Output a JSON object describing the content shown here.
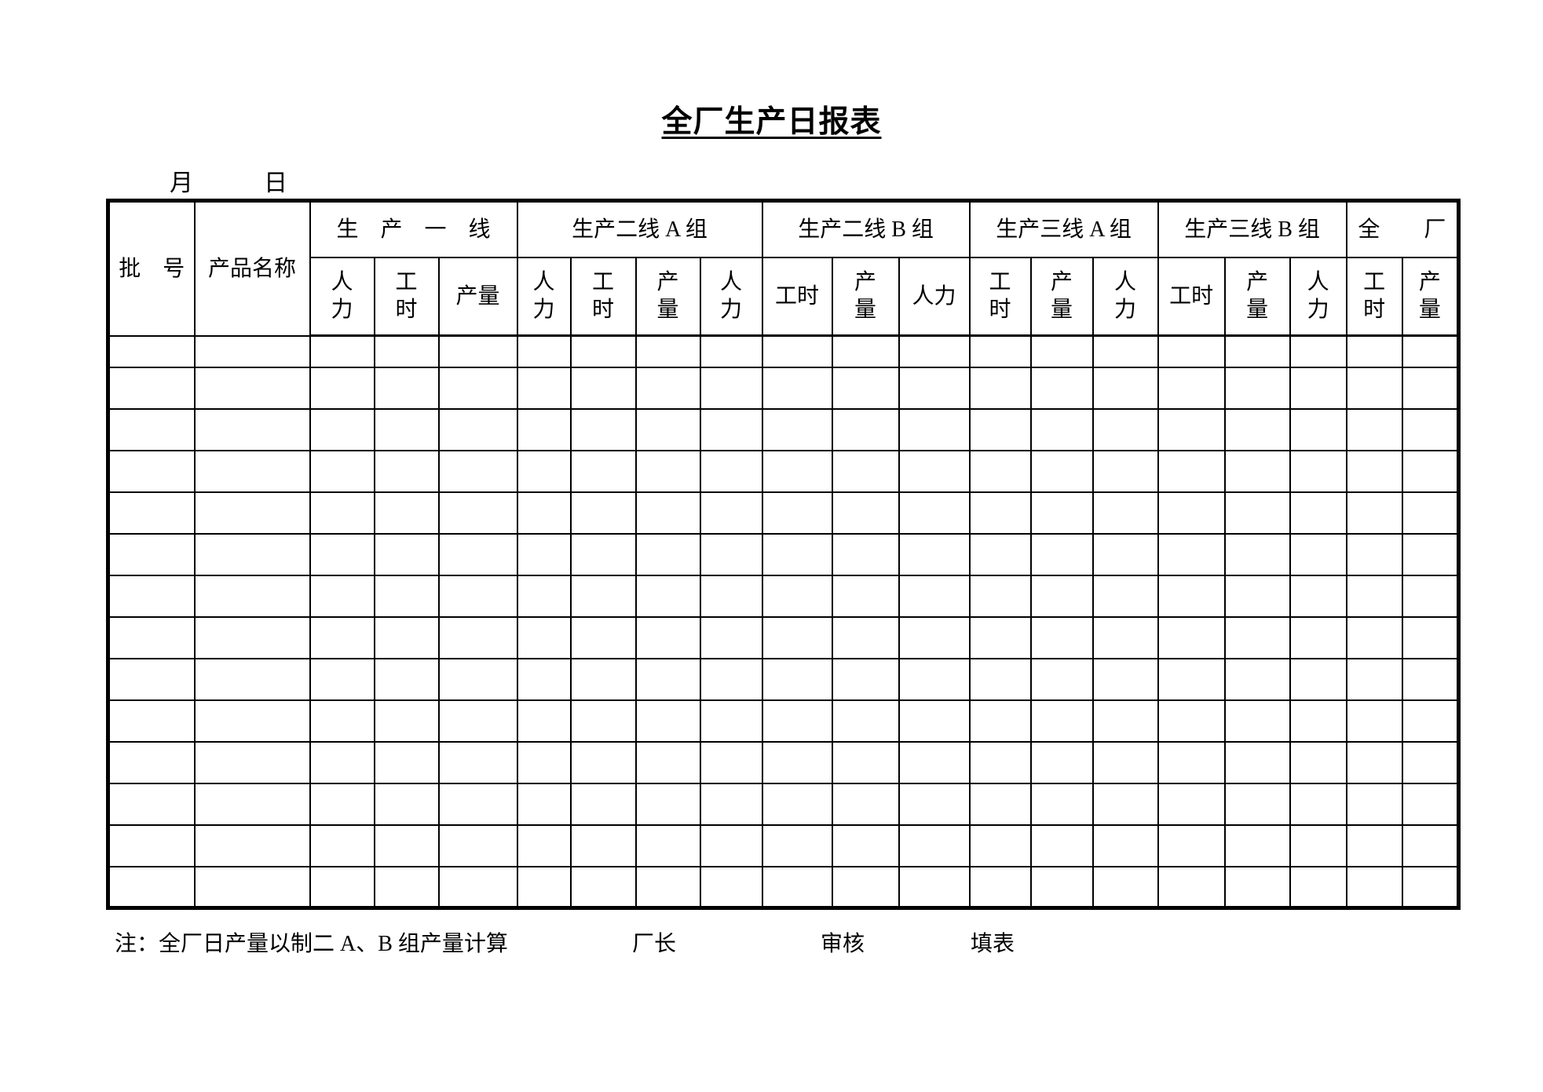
{
  "page": {
    "title": "全厂生产日报表",
    "month_label": "月",
    "day_label": "日"
  },
  "table": {
    "batch_label": "批　号",
    "product_label": "产品名称",
    "groups": [
      {
        "label": "生　产　一　线",
        "cols": [
          "人\n力",
          "工\n时",
          "产量"
        ]
      },
      {
        "label": "生产二线 A 组",
        "cols": [
          "人\n力",
          "工\n时",
          "产\n量",
          "人\n力"
        ]
      },
      {
        "label": "生产二线 B 组",
        "cols": [
          "工时",
          "产\n量",
          "人力"
        ]
      },
      {
        "label": "生产三线 A 组",
        "cols": [
          "工\n时",
          "产\n量",
          "人\n力"
        ]
      },
      {
        "label": "生产三线 B 组",
        "cols": [
          "工时",
          "产\n量",
          "人\n力"
        ]
      },
      {
        "label": "全　　厂",
        "cols": [
          "工\n时",
          "产\n量"
        ]
      }
    ],
    "empty_row_count": 14
  },
  "footer": {
    "note": "注：全厂日产量以制二 A、B 组产量计算",
    "director_label": "厂长",
    "reviewer_label": "审核",
    "filler_label": "填表"
  }
}
